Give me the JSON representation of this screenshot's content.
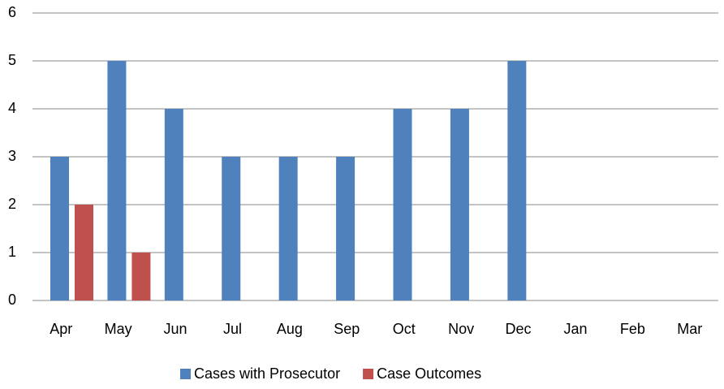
{
  "chart_data": {
    "type": "bar",
    "categories": [
      "Apr",
      "May",
      "Jun",
      "Jul",
      "Aug",
      "Sep",
      "Oct",
      "Nov",
      "Dec",
      "Jan",
      "Feb",
      "Mar"
    ],
    "series": [
      {
        "name": "Cases with Prosecutor",
        "color": "#4f81bd",
        "values": [
          3,
          5,
          4,
          3,
          3,
          3,
          4,
          4,
          5,
          null,
          null,
          null
        ]
      },
      {
        "name": "Case Outcomes",
        "color": "#c0504d",
        "values": [
          2,
          1,
          null,
          null,
          null,
          null,
          null,
          null,
          null,
          null,
          null,
          null
        ]
      }
    ],
    "ylim": [
      0,
      6
    ],
    "yticks": [
      0,
      1,
      2,
      3,
      4,
      5,
      6
    ],
    "grid": true,
    "legend": "bottom"
  }
}
